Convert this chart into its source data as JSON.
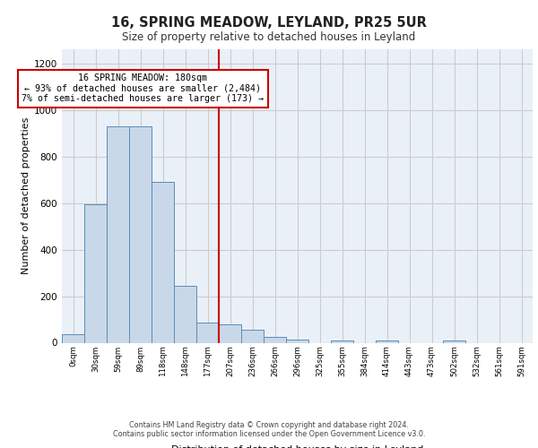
{
  "title1": "16, SPRING MEADOW, LEYLAND, PR25 5UR",
  "title2": "Size of property relative to detached houses in Leyland",
  "xlabel": "Distribution of detached houses by size in Leyland",
  "ylabel": "Number of detached properties",
  "bin_labels": [
    "0sqm",
    "30sqm",
    "59sqm",
    "89sqm",
    "118sqm",
    "148sqm",
    "177sqm",
    "207sqm",
    "236sqm",
    "266sqm",
    "296sqm",
    "325sqm",
    "355sqm",
    "384sqm",
    "414sqm",
    "443sqm",
    "473sqm",
    "502sqm",
    "532sqm",
    "561sqm",
    "591sqm"
  ],
  "bar_heights": [
    35,
    595,
    930,
    930,
    690,
    245,
    85,
    80,
    55,
    25,
    15,
    0,
    10,
    0,
    10,
    0,
    0,
    10,
    0,
    0,
    0
  ],
  "bar_color": "#c8d8e8",
  "bar_edge_color": "#5b8db8",
  "vline_x_index": 6.5,
  "annotation_text": "16 SPRING MEADOW: 180sqm\n← 93% of detached houses are smaller (2,484)\n7% of semi-detached houses are larger (173) →",
  "annotation_box_color": "#ffffff",
  "annotation_box_edge": "#cc0000",
  "vline_color": "#cc0000",
  "ylim": [
    0,
    1260
  ],
  "yticks": [
    0,
    200,
    400,
    600,
    800,
    1000,
    1200
  ],
  "grid_color": "#cccccc",
  "bg_color": "#eaf0f8",
  "footer": "Contains HM Land Registry data © Crown copyright and database right 2024.\nContains public sector information licensed under the Open Government Licence v3.0."
}
